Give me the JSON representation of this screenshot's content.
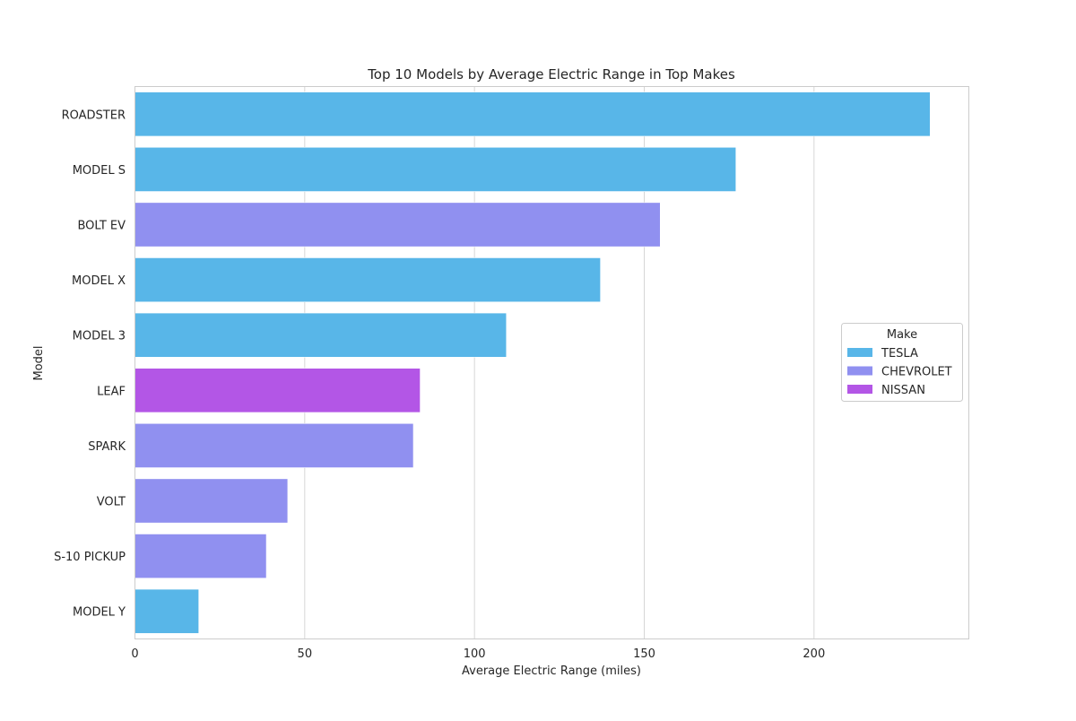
{
  "chart_data": {
    "type": "bar",
    "orientation": "horizontal",
    "title": "Top 10 Models by Average Electric Range in Top Makes",
    "xlabel": "Average Electric Range (miles)",
    "ylabel": "Model",
    "xlim": [
      0,
      245.6
    ],
    "xticks": [
      0,
      50,
      100,
      150,
      200
    ],
    "grid": "vertical",
    "legend": {
      "title": "Make",
      "placement": "center-right",
      "entries": [
        {
          "name": "TESLA",
          "color": "#58b6e8"
        },
        {
          "name": "CHEVROLET",
          "color": "#9090f0"
        },
        {
          "name": "NISSAN",
          "color": "#b356e6"
        }
      ]
    },
    "categories": [
      "ROADSTER",
      "MODEL S",
      "BOLT EV",
      "MODEL X",
      "MODEL 3",
      "LEAF",
      "SPARK",
      "VOLT",
      "S-10 PICKUP",
      "MODEL Y"
    ],
    "bars": [
      {
        "model": "ROADSTER",
        "make": "TESLA",
        "value": 234.2
      },
      {
        "model": "MODEL S",
        "make": "TESLA",
        "value": 177.0
      },
      {
        "model": "BOLT EV",
        "make": "CHEVROLET",
        "value": 154.7
      },
      {
        "model": "MODEL X",
        "make": "TESLA",
        "value": 137.1
      },
      {
        "model": "MODEL 3",
        "make": "TESLA",
        "value": 109.4
      },
      {
        "model": "LEAF",
        "make": "NISSAN",
        "value": 84.0
      },
      {
        "model": "SPARK",
        "make": "CHEVROLET",
        "value": 82.0
      },
      {
        "model": "VOLT",
        "make": "CHEVROLET",
        "value": 45.0
      },
      {
        "model": "S-10 PICKUP",
        "make": "CHEVROLET",
        "value": 38.7
      },
      {
        "model": "MODEL Y",
        "make": "TESLA",
        "value": 18.8
      }
    ]
  }
}
